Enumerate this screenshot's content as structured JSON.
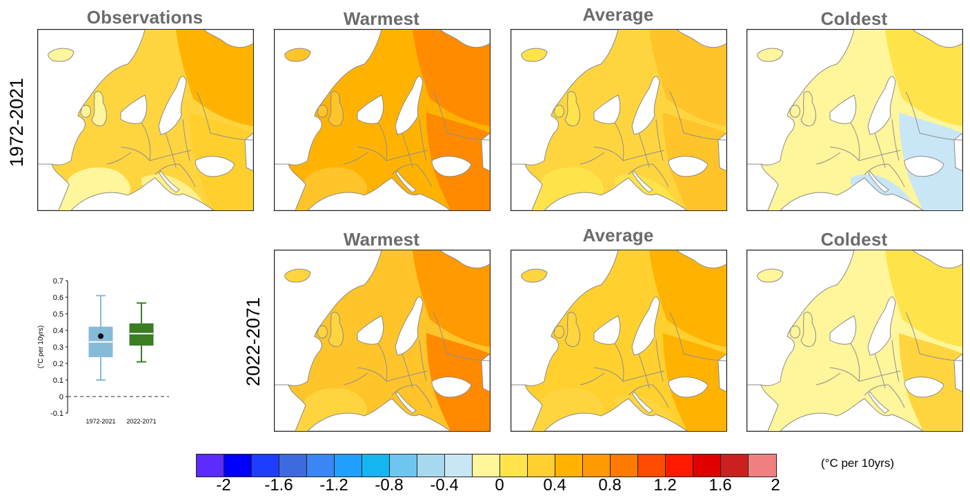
{
  "panels": {
    "observations": {
      "title": "Observations"
    },
    "warmest_1972": {
      "title": "Warmest"
    },
    "average_1972": {
      "title": "Average"
    },
    "coldest_1972": {
      "title": "Coldest"
    },
    "warmest_2022": {
      "title": "Warmest"
    },
    "average_2022": {
      "title": "Average"
    },
    "coldest_2022": {
      "title": "Coldest"
    }
  },
  "row_labels": {
    "top": "1972-2021",
    "bottom": "2022-2071"
  },
  "colorbar": {
    "units": "(°C per 10yrs)",
    "colors": [
      "#5b2bff",
      "#0000ff",
      "#1f3dff",
      "#3e6ae0",
      "#3a86f5",
      "#1fa0ff",
      "#14b6f2",
      "#6ec6f0",
      "#a8d8f0",
      "#c8e6f5",
      "#fff59a",
      "#ffe34a",
      "#ffd02e",
      "#ffb300",
      "#ff9a00",
      "#ff7a00",
      "#ff4a00",
      "#ff1a00",
      "#e00000",
      "#cc2020",
      "#f08080"
    ],
    "ticks": [
      "-2",
      "-1.6",
      "-1.2",
      "-0.8",
      "-0.4",
      "0",
      "0.4",
      "0.8",
      "1.2",
      "1.6",
      "2"
    ]
  },
  "chart_data": {
    "type": "box",
    "categories": [
      "1972-2021",
      "2022-2071"
    ],
    "ylabel": "(°C per 10yrs)",
    "ylim": [
      -0.1,
      0.7
    ],
    "yticks": [
      "-0.1",
      "0",
      "0.1",
      "0.2",
      "0.3",
      "0.4",
      "0.5",
      "0.6",
      "0.7"
    ],
    "reference_line": 0,
    "series": [
      {
        "name": "1972-2021",
        "whisker_low": 0.1,
        "q1": 0.24,
        "median": 0.33,
        "q3": 0.42,
        "whisker_high": 0.61,
        "observation": 0.365,
        "color": "#86bbd8"
      },
      {
        "name": "2022-2071",
        "whisker_low": 0.21,
        "q1": 0.31,
        "median": 0.38,
        "q3": 0.44,
        "whisker_high": 0.565,
        "color": "#3a7d22"
      }
    ]
  }
}
